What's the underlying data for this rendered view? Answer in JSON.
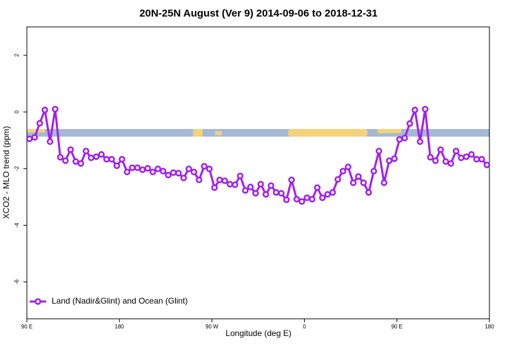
{
  "chart_data": {
    "type": "line",
    "title": "20N-25N August (Ver 9)   2014-09-06 to 2018-12-31",
    "x_label": "Longitude (deg E)",
    "y_label": "XCO2 - MLO trend (ppm)",
    "xlim": [
      90,
      540
    ],
    "xticks": [
      {
        "value": 90,
        "label": "90 E"
      },
      180,
      {
        "value": 270,
        "label": "90 W"
      },
      {
        "value": 360,
        "label": "0"
      },
      {
        "value": 450,
        "label": "90 E"
      },
      {
        "value": 540,
        "label": "180"
      }
    ],
    "ylim": [
      -7.3,
      3
    ],
    "yticks": [
      2,
      0,
      -2,
      -4,
      -6
    ],
    "legend": "bottom-left",
    "x": [
      92.5,
      97.5,
      102.5,
      107.5,
      112.5,
      117.5,
      122.5,
      127.5,
      132.5,
      137.5,
      142.5,
      147.5,
      152.5,
      157.5,
      162.5,
      167.5,
      172.5,
      177.5,
      182.5,
      187.5,
      192.5,
      197.5,
      202.5,
      207.5,
      212.5,
      217.5,
      222.5,
      227.5,
      232.5,
      237.5,
      242.5,
      247.5,
      252.5,
      257.5,
      262.5,
      267.5,
      272.5,
      277.5,
      282.5,
      287.5,
      292.5,
      297.5,
      302.5,
      307.5,
      312.5,
      317.5,
      322.5,
      327.5,
      332.5,
      337.5,
      342.5,
      347.5,
      352.5,
      357.5,
      362.5,
      367.5,
      372.5,
      377.5,
      382.5,
      387.5,
      392.5,
      397.5,
      402.5,
      407.5,
      412.5,
      417.5,
      422.5,
      427.5,
      432.5,
      437.5,
      442.5,
      447.5,
      452.5,
      457.5,
      462.5,
      467.5,
      472.5,
      477.5,
      482.5,
      487.5,
      492.5,
      497.5,
      502.5,
      507.5,
      512.5,
      517.5,
      522.5,
      527.5,
      532.5,
      537.5
    ],
    "series": [
      {
        "name": "Land (Nadir&Glint) and Ocean (Glint)",
        "color": "#a020f0",
        "values": [
          -0.95,
          -0.9,
          -0.4,
          0.07,
          -1.05,
          0.1,
          -1.6,
          -1.72,
          -1.33,
          -1.75,
          -1.82,
          -1.38,
          -1.62,
          -1.58,
          -1.5,
          -1.67,
          -1.67,
          -1.9,
          -1.67,
          -2.12,
          -1.97,
          -1.97,
          -2.04,
          -1.99,
          -2.12,
          -2.01,
          -2.09,
          -2.23,
          -2.14,
          -2.16,
          -2.33,
          -2.01,
          -2.12,
          -2.4,
          -1.92,
          -2.01,
          -2.67,
          -2.4,
          -2.43,
          -2.55,
          -2.57,
          -2.26,
          -2.77,
          -2.65,
          -2.87,
          -2.55,
          -2.91,
          -2.6,
          -2.84,
          -2.87,
          -3.1,
          -2.4,
          -3.08,
          -3.16,
          -3.03,
          -3.08,
          -2.67,
          -3.03,
          -2.91,
          -2.84,
          -2.38,
          -2.09,
          -1.94,
          -2.5,
          -2.28,
          -2.5,
          -2.84,
          -2.09,
          -1.38,
          -2.5,
          -1.72,
          -1.65,
          -0.97,
          -0.92,
          -0.41,
          0.07,
          -1.05,
          0.1,
          -1.6,
          -1.72,
          -1.33,
          -1.75,
          -1.82,
          -1.38,
          -1.62,
          -1.58,
          -1.5,
          -1.67,
          -1.67,
          -1.87
        ]
      }
    ]
  }
}
